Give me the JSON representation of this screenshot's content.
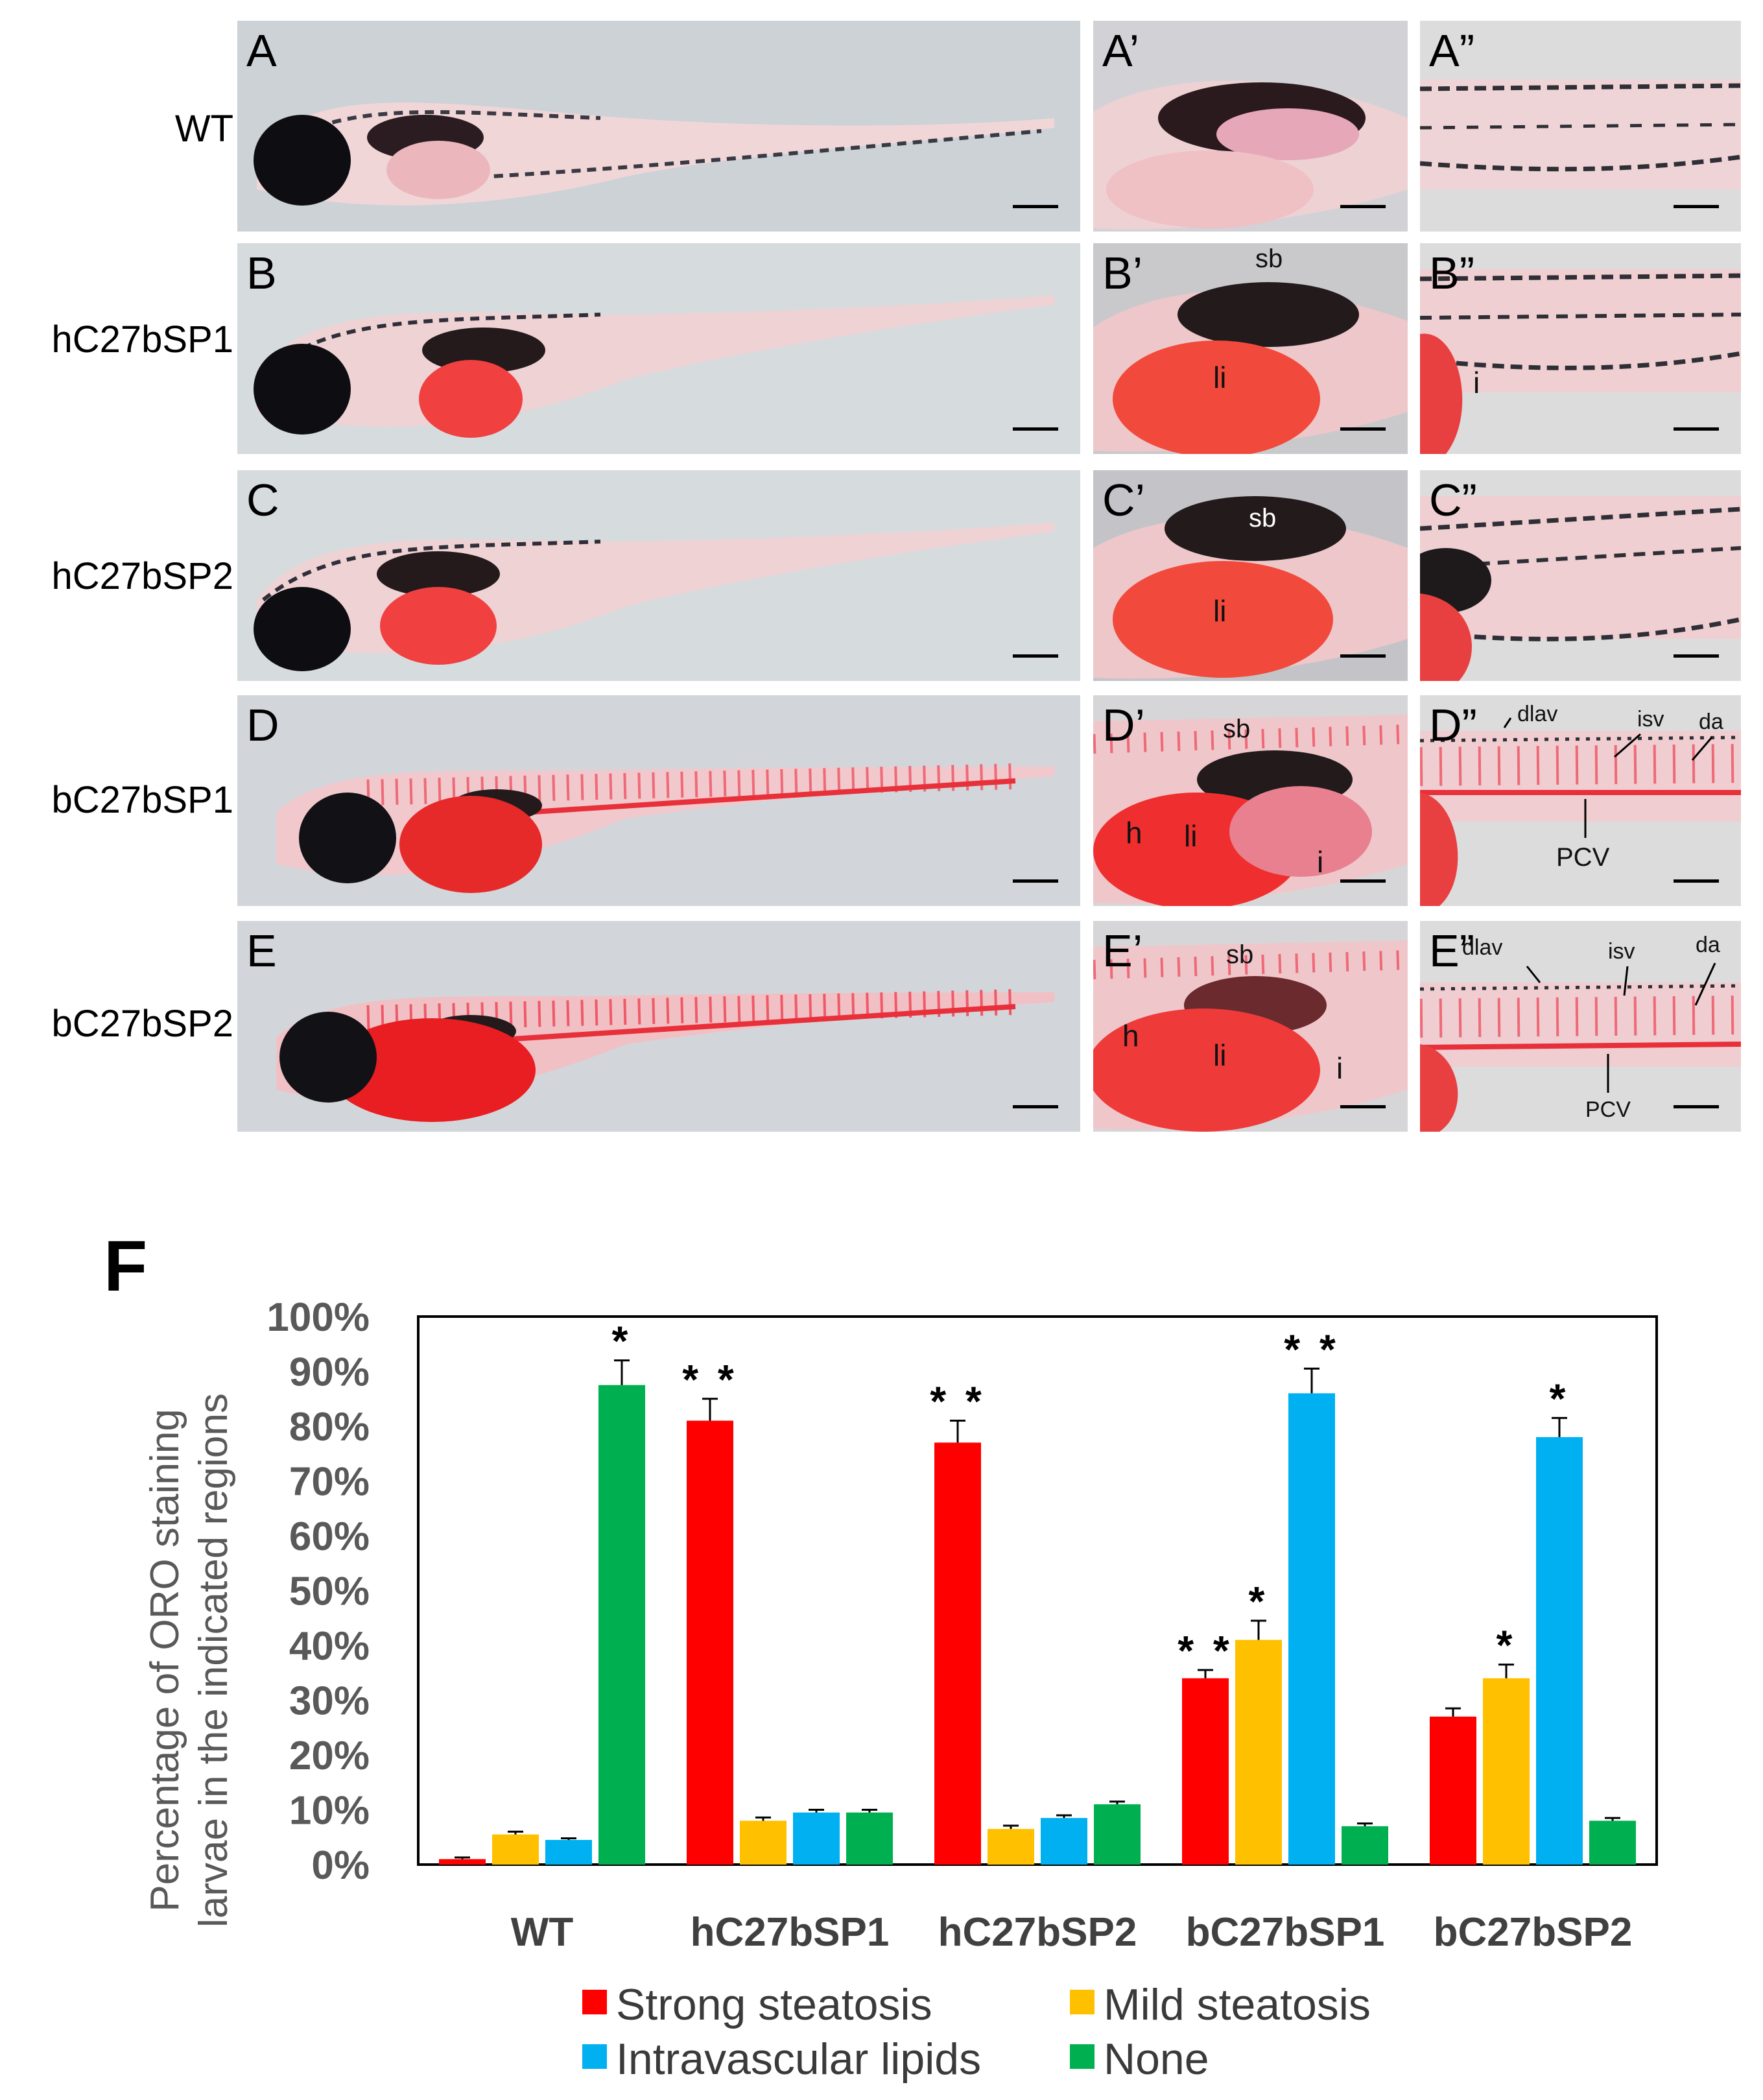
{
  "rows": [
    {
      "label": "WT",
      "main": "A",
      "mid": "A’",
      "right": "A”"
    },
    {
      "label": "hC27bSP1",
      "main": "B",
      "mid": "B’",
      "right": "B”"
    },
    {
      "label": "hC27bSP2",
      "main": "C",
      "mid": "C’",
      "right": "C”"
    },
    {
      "label": "bC27bSP1",
      "main": "D",
      "mid": "D’",
      "right": "D”"
    },
    {
      "label": "bC27bSP2",
      "main": "E",
      "mid": "E’",
      "right": "E”"
    }
  ],
  "annotations": {
    "sb": "sb",
    "li": "li",
    "i": "i",
    "h": "h",
    "dlav": "dlav",
    "isv": "isv",
    "da": "da",
    "pcv": "PCV"
  },
  "panel_f": {
    "letter": "F",
    "ylabel_line1": "Percentage of ORO staining",
    "ylabel_line2": "larvae in the indicated regions"
  },
  "legend": {
    "strong": "Strong steatosis",
    "mild": "Mild steatosis",
    "intra": "Intravascular lipids",
    "none": "None"
  },
  "colors": {
    "strong": "#ff0000",
    "mild": "#ffc000",
    "intra": "#00b0f0",
    "none": "#00b050"
  },
  "chart_data": {
    "type": "bar",
    "title": "",
    "xlabel": "",
    "ylabel": "Percentage of ORO staining larvae in the indicated regions",
    "ylim": [
      0,
      100
    ],
    "yticks": [
      "0%",
      "10%",
      "20%",
      "30%",
      "40%",
      "50%",
      "60%",
      "70%",
      "80%",
      "90%",
      "100%"
    ],
    "categories": [
      "WT",
      "hC27bSP1",
      "hC27bSP2",
      "bC27bSP1",
      "bC27bSP2"
    ],
    "series": [
      {
        "name": "Strong steatosis",
        "color": "#ff0000",
        "values": [
          1,
          81,
          77,
          34,
          27
        ],
        "errors": [
          0.3,
          4,
          4,
          1.5,
          1.5
        ],
        "sig": [
          "",
          "**",
          "**",
          "**",
          ""
        ]
      },
      {
        "name": "Mild steatosis",
        "color": "#ffc000",
        "values": [
          5.5,
          8,
          6.5,
          41,
          34
        ],
        "errors": [
          0.5,
          0.6,
          0.6,
          3.5,
          2.5
        ],
        "sig": [
          "",
          "",
          "",
          "*",
          "*"
        ]
      },
      {
        "name": "Intravascular lipids",
        "color": "#00b0f0",
        "values": [
          4.5,
          9.5,
          8.5,
          86,
          78
        ],
        "errors": [
          0.3,
          0.5,
          0.5,
          4.5,
          3.5
        ],
        "sig": [
          "",
          "",
          "",
          "**",
          "*"
        ]
      },
      {
        "name": "None",
        "color": "#00b050",
        "values": [
          87.5,
          9.5,
          11,
          7,
          8
        ],
        "errors": [
          4.5,
          0.5,
          0.5,
          0.5,
          0.5
        ],
        "sig": [
          "*",
          "",
          "",
          "",
          ""
        ]
      }
    ]
  }
}
